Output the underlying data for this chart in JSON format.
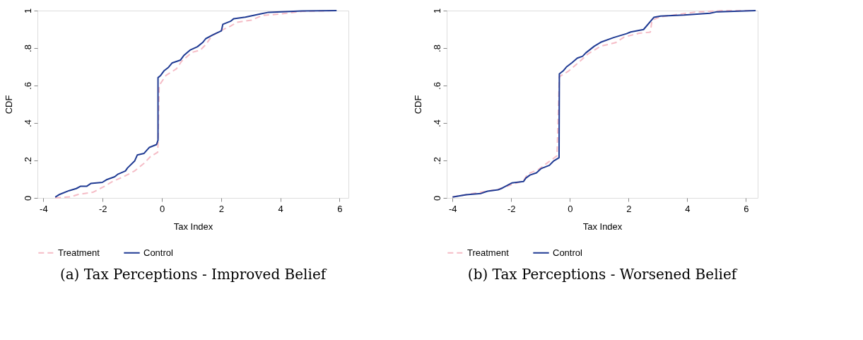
{
  "chart_data": [
    {
      "type": "line",
      "title": "(a) Tax Perceptions - Improved Belief",
      "xlabel": "Tax Index",
      "ylabel": "CDF",
      "xlim": [
        -4.2,
        6.3
      ],
      "xticks": [
        -4,
        -2,
        0,
        2,
        4,
        6
      ],
      "ylim": [
        0,
        1
      ],
      "yticks": [
        {
          "value": 0,
          "label": "0"
        },
        {
          "value": 0.2,
          "label": ".2"
        },
        {
          "value": 0.4,
          "label": ".4"
        },
        {
          "value": 0.6,
          "label": ".6"
        },
        {
          "value": 0.8,
          "label": ".8"
        },
        {
          "value": 1,
          "label": "1"
        }
      ],
      "grid": false,
      "legend": "bottom",
      "marker": "none",
      "series": [
        {
          "name": "Treatment",
          "color": "#f5bcc6",
          "line_style": "dashed",
          "x": [
            -3.6,
            -3.07,
            -2.82,
            -2.33,
            -1.94,
            -1.66,
            -1.27,
            -0.92,
            -0.6,
            -0.39,
            -0.14,
            -0.13,
            -0.09,
            0.14,
            0.49,
            0.67,
            1.02,
            1.3,
            1.48,
            1.69,
            2.04,
            2.33,
            2.54,
            3.03,
            3.39,
            4.02,
            4.73,
            5.9
          ],
          "values": [
            0,
            0.006,
            0.019,
            0.03,
            0.062,
            0.088,
            0.115,
            0.144,
            0.185,
            0.22,
            0.244,
            0.285,
            0.601,
            0.654,
            0.689,
            0.73,
            0.777,
            0.789,
            0.818,
            0.865,
            0.897,
            0.918,
            0.938,
            0.949,
            0.974,
            0.982,
            0.996,
            1.0
          ]
        },
        {
          "name": "Control",
          "color": "#1f3a93",
          "line_style": "solid",
          "x": [
            -3.6,
            -3.45,
            -3.13,
            -2.89,
            -2.75,
            -2.54,
            -2.4,
            -2.01,
            -1.87,
            -1.59,
            -1.48,
            -1.23,
            -1.16,
            -0.92,
            -0.83,
            -0.6,
            -0.42,
            -0.18,
            -0.13,
            -0.13,
            -0.04,
            0.07,
            0.21,
            0.35,
            0.63,
            0.74,
            0.95,
            1.2,
            1.38,
            1.48,
            1.73,
            2.01,
            2.06,
            2.33,
            2.43,
            2.82,
            3.32,
            3.6,
            4.73,
            5.9
          ],
          "values": [
            0.004,
            0.019,
            0.039,
            0.05,
            0.062,
            0.062,
            0.077,
            0.083,
            0.097,
            0.113,
            0.127,
            0.144,
            0.16,
            0.197,
            0.229,
            0.238,
            0.27,
            0.285,
            0.308,
            0.642,
            0.654,
            0.678,
            0.695,
            0.721,
            0.736,
            0.76,
            0.789,
            0.807,
            0.83,
            0.85,
            0.871,
            0.892,
            0.927,
            0.944,
            0.957,
            0.965,
            0.982,
            0.991,
            0.998,
            1.0
          ]
        }
      ]
    },
    {
      "type": "line",
      "title": "(b) Tax Perceptions - Worsened Belief",
      "xlabel": "Tax Index",
      "ylabel": "CDF",
      "xlim": [
        -4.2,
        6.4
      ],
      "xticks": [
        -4,
        -2,
        0,
        2,
        4,
        6
      ],
      "ylim": [
        0,
        1
      ],
      "yticks": [
        {
          "value": 0,
          "label": "0"
        },
        {
          "value": 0.2,
          "label": ".2"
        },
        {
          "value": 0.4,
          "label": ".4"
        },
        {
          "value": 0.6,
          "label": ".6"
        },
        {
          "value": 0.8,
          "label": ".8"
        },
        {
          "value": 1,
          "label": "1"
        }
      ],
      "grid": false,
      "legend": "bottom",
      "marker": "none",
      "series": [
        {
          "name": "Treatment",
          "color": "#f5bcc6",
          "line_style": "dashed",
          "x": [
            -4.0,
            -2.45,
            -1.58,
            -1.44,
            -1.07,
            -0.44,
            -0.36,
            -0.04,
            0.32,
            0.61,
            1.05,
            1.56,
            1.85,
            2.36,
            2.74,
            2.8,
            3.09,
            4.26,
            5.2,
            6.33
          ],
          "values": [
            0.005,
            0.046,
            0.092,
            0.128,
            0.152,
            0.225,
            0.647,
            0.678,
            0.726,
            0.768,
            0.81,
            0.829,
            0.859,
            0.879,
            0.885,
            0.949,
            0.967,
            0.992,
            1.0,
            1.0
          ]
        },
        {
          "name": "Control",
          "color": "#1f3a93",
          "line_style": "solid",
          "x": [
            -4.0,
            -3.54,
            -3.03,
            -2.81,
            -2.45,
            -2.3,
            -1.98,
            -1.58,
            -1.5,
            -1.36,
            -1.14,
            -0.99,
            -0.7,
            -0.55,
            -0.37,
            -0.36,
            -0.23,
            -0.12,
            0.07,
            0.25,
            0.43,
            0.54,
            0.83,
            1.05,
            1.49,
            1.93,
            2.07,
            2.51,
            2.86,
            3.09,
            3.89,
            4.77,
            4.99,
            6.33
          ],
          "values": [
            0.005,
            0.017,
            0.024,
            0.036,
            0.043,
            0.053,
            0.08,
            0.088,
            0.106,
            0.122,
            0.134,
            0.156,
            0.174,
            0.198,
            0.215,
            0.662,
            0.678,
            0.699,
            0.722,
            0.746,
            0.756,
            0.774,
            0.81,
            0.831,
            0.856,
            0.877,
            0.886,
            0.899,
            0.964,
            0.971,
            0.976,
            0.986,
            0.993,
            1.0
          ]
        }
      ]
    }
  ]
}
